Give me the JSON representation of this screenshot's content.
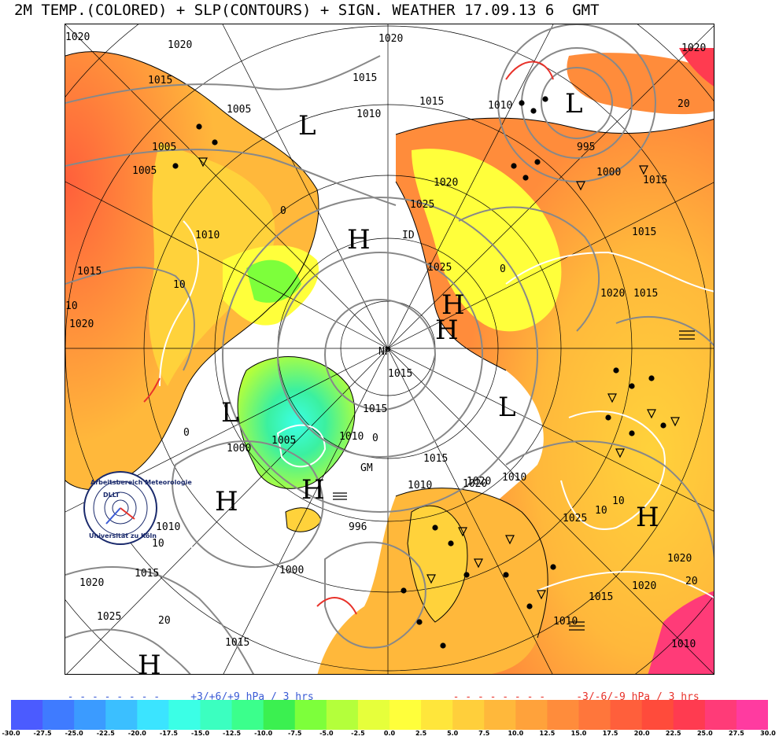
{
  "title": "2M TEMP.(COLORED) + SLP(CONTOURS) + SIGN. WEATHER 17.09.13 6  GMT",
  "legend": {
    "rise_text": "+3/+6/+9 hPa / 3 hrs",
    "fall_text": "-3/-6/-9 hPa / 3 hrs",
    "rise_color": "#3b5bd6",
    "fall_color": "#e8322a"
  },
  "colorbar": {
    "ticks": [
      "-30.0",
      "-27.5",
      "-25.0",
      "-22.5",
      "-20.0",
      "-17.5",
      "-15.0",
      "-12.5",
      "-10.0",
      "-7.5",
      "-5.0",
      "-2.5",
      "0.0",
      "2.5",
      "5.0",
      "7.5",
      "10.0",
      "12.5",
      "15.0",
      "17.5",
      "20.0",
      "22.5",
      "25.0",
      "27.5",
      "30.0"
    ],
    "colors": [
      "#4b5bff",
      "#3f7bff",
      "#3b9bff",
      "#3bbfff",
      "#3be4ff",
      "#3bffe6",
      "#3bffc0",
      "#3bff8c",
      "#3bf050",
      "#7dff3b",
      "#b4ff3b",
      "#e6ff3b",
      "#ffff3b",
      "#ffe63b",
      "#ffcf3b",
      "#ffb83b",
      "#ffa23b",
      "#ff8c3b",
      "#ff763b",
      "#ff5f3b",
      "#ff4b3b",
      "#ff3b50",
      "#ff3b78",
      "#ff3ba0"
    ]
  },
  "map": {
    "pressure_labels": [
      {
        "id": "p1",
        "text": "1020"
      },
      {
        "id": "p2",
        "text": "1015"
      },
      {
        "id": "p3",
        "text": "1005"
      },
      {
        "id": "p4",
        "text": "1015"
      },
      {
        "id": "p5",
        "text": "1020"
      },
      {
        "id": "p6",
        "text": "1010"
      },
      {
        "id": "p7",
        "text": "1015"
      },
      {
        "id": "p8",
        "text": "995"
      },
      {
        "id": "p9",
        "text": "1000"
      },
      {
        "id": "p10",
        "text": "1010"
      },
      {
        "id": "p11",
        "text": "1005"
      },
      {
        "id": "p12",
        "text": "1005"
      },
      {
        "id": "p13",
        "text": "1010"
      },
      {
        "id": "p14",
        "text": "1015"
      },
      {
        "id": "p15",
        "text": "1020"
      },
      {
        "id": "p16",
        "text": "1020"
      },
      {
        "id": "p17",
        "text": "1025"
      },
      {
        "id": "p18",
        "text": "1020"
      },
      {
        "id": "p19",
        "text": "1015"
      },
      {
        "id": "p20",
        "text": "1015"
      },
      {
        "id": "p21",
        "text": "1015"
      },
      {
        "id": "p22",
        "text": "1005"
      },
      {
        "id": "p23",
        "text": "1000"
      },
      {
        "id": "p24",
        "text": "1010"
      },
      {
        "id": "p25",
        "text": "1015"
      },
      {
        "id": "p26",
        "text": "1010"
      },
      {
        "id": "p27",
        "text": "1020"
      },
      {
        "id": "p28",
        "text": "996"
      },
      {
        "id": "p29",
        "text": "1000"
      },
      {
        "id": "p30",
        "text": "1010"
      },
      {
        "id": "p31",
        "text": "1015"
      },
      {
        "id": "p32",
        "text": "1020"
      },
      {
        "id": "p33",
        "text": "1025"
      },
      {
        "id": "p34",
        "text": "1020"
      },
      {
        "id": "p35",
        "text": "1015"
      },
      {
        "id": "p36",
        "text": "1010"
      },
      {
        "id": "p37",
        "text": "1025"
      },
      {
        "id": "p38",
        "text": "1020"
      },
      {
        "id": "p39",
        "text": "1015"
      },
      {
        "id": "p40",
        "text": "1010"
      },
      {
        "id": "p41",
        "text": "1020"
      },
      {
        "id": "p42",
        "text": "1025"
      },
      {
        "id": "p43",
        "text": "1020"
      },
      {
        "id": "p44",
        "text": "1015"
      },
      {
        "id": "p45",
        "text": "1010"
      },
      {
        "id": "p46",
        "text": "1020"
      },
      {
        "id": "p47",
        "text": "1015"
      }
    ],
    "temp_labels": [
      {
        "id": "t1",
        "text": "0"
      },
      {
        "id": "t2",
        "text": "10"
      },
      {
        "id": "t3",
        "text": "10"
      },
      {
        "id": "t4",
        "text": "0"
      },
      {
        "id": "t5",
        "text": "0"
      },
      {
        "id": "t6",
        "text": "10"
      },
      {
        "id": "t7",
        "text": "20"
      },
      {
        "id": "t8",
        "text": "10"
      },
      {
        "id": "t9",
        "text": "20"
      },
      {
        "id": "t10",
        "text": "20"
      },
      {
        "id": "t11",
        "text": "0"
      },
      {
        "id": "t12",
        "text": "10"
      }
    ],
    "hilo": [
      {
        "id": "h1",
        "text": "H"
      },
      {
        "id": "h2",
        "text": "L"
      },
      {
        "id": "h3",
        "text": "H"
      },
      {
        "id": "h4",
        "text": "L"
      },
      {
        "id": "h5",
        "text": "H"
      },
      {
        "id": "h6",
        "text": "H"
      },
      {
        "id": "h7",
        "text": "L"
      },
      {
        "id": "h8",
        "text": "H"
      },
      {
        "id": "h9",
        "text": "H"
      },
      {
        "id": "h10",
        "text": "L"
      },
      {
        "id": "h11",
        "text": "H"
      }
    ],
    "np_label": "NP",
    "gm_label": "GM",
    "id_label": "ID",
    "logo": {
      "line1": "Arbeitsbereich Meteorologie",
      "line2": "Universität zu Köln",
      "letters": "DLLT"
    }
  }
}
